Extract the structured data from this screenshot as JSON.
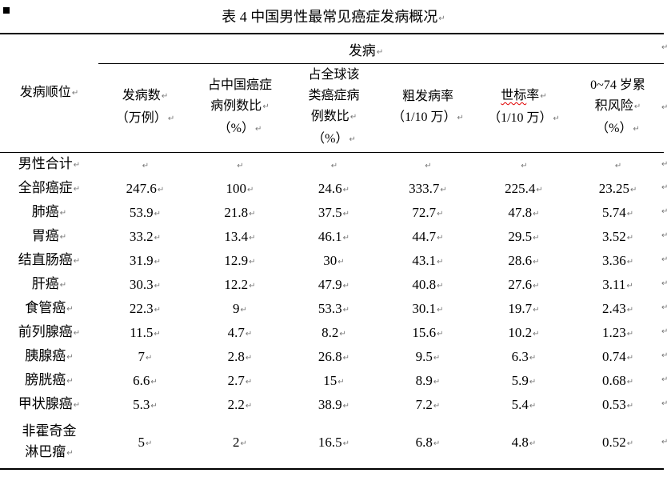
{
  "marks": {
    "line_end": "↵",
    "color": "#777777"
  },
  "bullet_icon": "black-square",
  "title": {
    "text": "表 4 中国男性最常见癌症发病概况"
  },
  "table": {
    "group_header": {
      "label": "发病",
      "mark": true
    },
    "columns": [
      {
        "id": "rank",
        "lines": [
          [
            {
              "t": "发病顺位",
              "m": true
            }
          ]
        ]
      },
      {
        "id": "cases",
        "lines": [
          [
            {
              "t": "发病数",
              "m": true
            }
          ],
          [
            {
              "t": "（万例）",
              "m": true
            }
          ]
        ]
      },
      {
        "id": "pct-china",
        "lines": [
          [
            {
              "t": "占中国癌症"
            }
          ],
          [
            {
              "t": "病例数比",
              "m": true
            }
          ],
          [
            {
              "t": "（%）",
              "m": true
            }
          ]
        ]
      },
      {
        "id": "pct-global",
        "lines": [
          [
            {
              "t": "占全球该"
            }
          ],
          [
            {
              "t": "类癌症病"
            }
          ],
          [
            {
              "t": "例数比",
              "m": true
            }
          ],
          [
            {
              "t": "（%）",
              "m": true
            }
          ]
        ]
      },
      {
        "id": "crude-rate",
        "lines": [
          [
            {
              "t": "粗发病率"
            }
          ],
          [
            {
              "t": "（1/10 万）",
              "m": true
            }
          ]
        ]
      },
      {
        "id": "asr-world",
        "lines": [
          [
            {
              "t": "世标",
              "sp": true
            },
            {
              "t": "率",
              "m": true
            }
          ],
          [
            {
              "t": "（1/10 万）",
              "m": true
            }
          ]
        ]
      },
      {
        "id": "cum-risk",
        "lines": [
          [
            {
              "t": "0~74 岁累"
            }
          ],
          [
            {
              "t": "积风险",
              "m": true
            }
          ],
          [
            {
              "t": "（%）",
              "m": true
            }
          ]
        ]
      }
    ],
    "rows": [
      {
        "label": [
          [
            {
              "t": "男性合计",
              "m": true
            }
          ]
        ],
        "values": [
          "",
          "",
          "",
          "",
          "",
          ""
        ]
      },
      {
        "label": [
          [
            {
              "t": "全部癌症",
              "m": true
            }
          ]
        ],
        "values": [
          "247.6",
          "100",
          "24.6",
          "333.7",
          "225.4",
          "23.25"
        ]
      },
      {
        "label": [
          [
            {
              "t": "肺癌",
              "m": true
            }
          ]
        ],
        "values": [
          "53.9",
          "21.8",
          "37.5",
          "72.7",
          "47.8",
          "5.74"
        ]
      },
      {
        "label": [
          [
            {
              "t": "胃癌",
              "m": true
            }
          ]
        ],
        "values": [
          "33.2",
          "13.4",
          "46.1",
          "44.7",
          "29.5",
          "3.52"
        ]
      },
      {
        "label": [
          [
            {
              "t": "结直肠癌",
              "m": true
            }
          ]
        ],
        "values": [
          "31.9",
          "12.9",
          "30",
          "43.1",
          "28.6",
          "3.36"
        ]
      },
      {
        "label": [
          [
            {
              "t": "肝癌",
              "m": true
            }
          ]
        ],
        "values": [
          "30.3",
          "12.2",
          "47.9",
          "40.8",
          "27.6",
          "3.11"
        ]
      },
      {
        "label": [
          [
            {
              "t": "食管癌",
              "m": true
            }
          ]
        ],
        "values": [
          "22.3",
          "9",
          "53.3",
          "30.1",
          "19.7",
          "2.43"
        ]
      },
      {
        "label": [
          [
            {
              "t": "前列腺癌",
              "m": true
            }
          ]
        ],
        "values": [
          "11.5",
          "4.7",
          "8.2",
          "15.6",
          "10.2",
          "1.23"
        ]
      },
      {
        "label": [
          [
            {
              "t": "胰腺癌",
              "m": true
            }
          ]
        ],
        "values": [
          "7",
          "2.8",
          "26.8",
          "9.5",
          "6.3",
          "0.74"
        ]
      },
      {
        "label": [
          [
            {
              "t": "膀胱癌",
              "m": true
            }
          ]
        ],
        "values": [
          "6.6",
          "2.7",
          "15",
          "8.9",
          "5.9",
          "0.68"
        ]
      },
      {
        "label": [
          [
            {
              "t": "甲状腺癌",
              "m": true
            }
          ]
        ],
        "values": [
          "5.3",
          "2.2",
          "38.9",
          "7.2",
          "5.4",
          "0.53"
        ]
      },
      {
        "label": [
          [
            {
              "t": "非霍奇金"
            }
          ],
          [
            {
              "t": "淋巴瘤",
              "m": true
            }
          ]
        ],
        "tall": true,
        "values": [
          "5",
          "2",
          "16.5",
          "6.8",
          "4.8",
          "0.52"
        ]
      }
    ]
  }
}
